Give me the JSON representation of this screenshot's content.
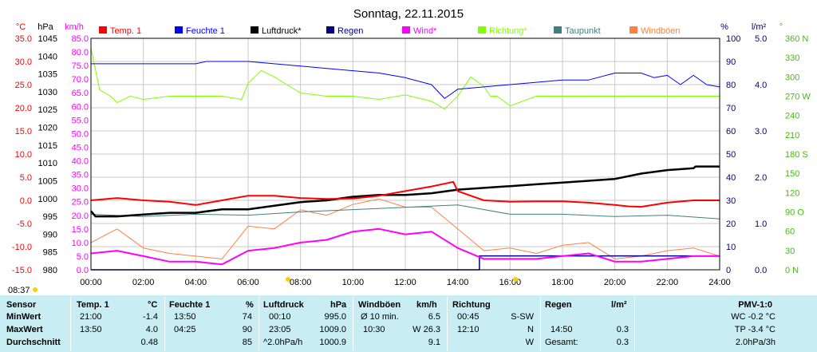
{
  "chart_data": {
    "type": "line",
    "title": "Sonntag, 22.11.2015",
    "legend": [
      {
        "name": "Temp. 1",
        "color": "#ff0000"
      },
      {
        "name": "Feuchte 1",
        "color": "#0000ff"
      },
      {
        "name": "Luftdruck*",
        "color": "#000000"
      },
      {
        "name": "Regen",
        "color": "#000080"
      },
      {
        "name": "Wind*",
        "color": "#ff00ff"
      },
      {
        "name": "Richtung*",
        "color": "#80ff00"
      },
      {
        "name": "Taupunkt",
        "color": "#408080"
      },
      {
        "name": "Windböen",
        "color": "#ff8040"
      }
    ],
    "x_ticks": [
      "00:00",
      "02:00",
      "04:00",
      "06:00",
      "08:00",
      "10:00",
      "12:00",
      "14:00",
      "16:00",
      "18:00",
      "20:00",
      "22:00",
      "24:00"
    ],
    "x_range_hours": [
      0,
      24
    ],
    "axes": {
      "temp": {
        "unit": "°C",
        "range": [
          -15,
          35
        ],
        "ticks": [
          "35.0",
          "30.0",
          "25.0",
          "20.0",
          "15.0",
          "10.0",
          "5.0",
          "0.0",
          "-5.0",
          "-10.0",
          "-15.0"
        ],
        "color": "#ff0000"
      },
      "pressure": {
        "unit": "hPa",
        "range": [
          980,
          1045
        ],
        "ticks": [
          "1045",
          "1040",
          "1035",
          "1030",
          "1025",
          "1020",
          "1015",
          "1010",
          "1005",
          "1000",
          "995",
          "990",
          "985",
          "980"
        ],
        "color": "#000000"
      },
      "wind": {
        "unit": "km/h",
        "range": [
          0,
          85
        ],
        "ticks": [
          "85.0",
          "80.0",
          "75.0",
          "70.0",
          "65.0",
          "60.0",
          "55.0",
          "50.0",
          "45.0",
          "40.0",
          "35.0",
          "30.0",
          "25.0",
          "20.0",
          "15.0",
          "10.0",
          "5.0",
          "0.0"
        ],
        "color": "#ff00ff"
      },
      "humidity": {
        "unit": "%",
        "range": [
          0,
          100
        ],
        "ticks": [
          "100",
          "90",
          "80",
          "70",
          "60",
          "50",
          "40",
          "30",
          "20",
          "10",
          "0"
        ],
        "color": "#000080"
      },
      "rain": {
        "unit": "l/m²",
        "range": [
          0,
          5
        ],
        "ticks": [
          "5.0",
          "4.0",
          "3.0",
          "2.0",
          "1.0",
          "0.0"
        ],
        "color": "#000080"
      },
      "direction": {
        "unit": "°",
        "range": [
          0,
          360
        ],
        "ticks": [
          "360 N",
          "330",
          "300",
          "270 W",
          "240",
          "210",
          "180 S",
          "150",
          "120",
          "90 O",
          "60",
          "30",
          "0 N"
        ],
        "color": "#40c000"
      }
    },
    "series": [
      {
        "name": "Temp. 1",
        "axis": "temp",
        "color": "#ff0000",
        "x": [
          0,
          1,
          2,
          3,
          4,
          5,
          6,
          7,
          8,
          9,
          10,
          11,
          12,
          13,
          13.83,
          14,
          15,
          16,
          17,
          18,
          19,
          20,
          20.5,
          21,
          22,
          23,
          24
        ],
        "y": [
          0,
          0.5,
          0,
          -0.3,
          -1,
          0,
          1,
          1,
          0.5,
          0.3,
          0.4,
          1,
          2,
          3,
          4,
          2,
          0,
          -0.3,
          -0.2,
          -0.2,
          -0.5,
          -1,
          -1.3,
          -1.4,
          -0.5,
          0,
          0
        ]
      },
      {
        "name": "Feuchte 1",
        "axis": "humidity",
        "color": "#0000ff",
        "x": [
          0,
          1,
          2,
          3,
          4,
          4.4,
          5,
          6,
          7,
          8,
          9,
          10,
          11,
          12,
          13,
          13.5,
          14,
          15,
          16,
          17,
          18,
          19,
          20,
          21,
          21.5,
          22,
          22.5,
          23,
          23.5,
          24
        ],
        "y": [
          89,
          89,
          89,
          89,
          89,
          90,
          90,
          90,
          89,
          88,
          87,
          86,
          85,
          83,
          80,
          74,
          78,
          79,
          80,
          81,
          82,
          82,
          85,
          85,
          83,
          84,
          80,
          84,
          80,
          79
        ]
      },
      {
        "name": "Luftdruck*",
        "axis": "pressure",
        "color": "#000000",
        "x": [
          0,
          0.17,
          1,
          2,
          3,
          4,
          5,
          6,
          7,
          8,
          9,
          10,
          11,
          12,
          13,
          14,
          15,
          16,
          17,
          18,
          19,
          20,
          21,
          22,
          23,
          23.08,
          24
        ],
        "y": [
          996.5,
          995,
          995,
          995.5,
          996,
          996,
          997,
          997,
          998,
          999,
          999.5,
          1000.5,
          1001,
          1001,
          1001.5,
          1002.5,
          1003,
          1003.5,
          1004,
          1004.5,
          1005,
          1005.5,
          1007,
          1008,
          1008.5,
          1009,
          1009
        ]
      },
      {
        "name": "Regen",
        "axis": "rain",
        "color": "#000080",
        "x": [
          0,
          14.83,
          14.83,
          24
        ],
        "y": [
          0,
          0,
          0.3,
          0.3
        ]
      },
      {
        "name": "Wind*",
        "axis": "wind",
        "color": "#ff00ff",
        "x": [
          0,
          1,
          2,
          3,
          4,
          5,
          6,
          7,
          8,
          9,
          10,
          11,
          12,
          13,
          14,
          15,
          16,
          17,
          18,
          19,
          20,
          21,
          22,
          23,
          24
        ],
        "y": [
          6,
          7,
          5,
          3,
          3,
          2,
          7,
          8,
          10,
          11,
          14,
          15,
          13,
          14,
          8,
          4,
          4,
          4,
          5,
          6,
          3,
          3,
          4,
          5,
          5
        ]
      },
      {
        "name": "Richtung*",
        "axis": "direction",
        "color": "#80ff00",
        "x": [
          0,
          0.33,
          0.75,
          1,
          1.5,
          2,
          3,
          4,
          5,
          5.75,
          6,
          6.5,
          7,
          8,
          9,
          10,
          11,
          12,
          13,
          13.5,
          14,
          14.5,
          15,
          15.25,
          15.5,
          16,
          17,
          18,
          19,
          20,
          21,
          22,
          23,
          24
        ],
        "y": [
          345,
          280,
          270,
          260,
          270,
          265,
          270,
          270,
          270,
          265,
          290,
          310,
          300,
          275,
          270,
          270,
          265,
          272,
          262,
          250,
          270,
          300,
          285,
          270,
          270,
          255,
          270,
          270,
          270,
          270,
          270,
          270,
          270,
          270
        ]
      },
      {
        "name": "Taupunkt",
        "axis": "temp",
        "color": "#408080",
        "x": [
          0,
          2,
          4,
          6,
          8,
          10,
          12,
          14,
          16,
          18,
          20,
          22,
          24
        ],
        "y": [
          -3,
          -3.5,
          -3,
          -3.2,
          -2.5,
          -2,
          -1.5,
          -1,
          -3,
          -3,
          -3.5,
          -3.2,
          -4
        ]
      },
      {
        "name": "Windböen",
        "axis": "wind",
        "color": "#ff8040",
        "x": [
          0,
          1,
          2,
          3,
          4,
          5,
          6,
          7,
          8,
          9,
          10,
          11,
          12,
          13,
          14,
          15,
          16,
          17,
          18,
          19,
          20,
          21,
          22,
          23,
          24
        ],
        "y": [
          10,
          15,
          8,
          6,
          5,
          4,
          16,
          15,
          22,
          20,
          24,
          26,
          23,
          23,
          15,
          7,
          8,
          6,
          9,
          10,
          4,
          5,
          7,
          8,
          5
        ]
      }
    ],
    "markers": {
      "time_label": "08:37"
    }
  },
  "table": {
    "headers": {
      "sensor": "Sensor",
      "temp": "Temp. 1",
      "temp_unit": "°C",
      "hum": "Feuchte 1",
      "hum_unit": "%",
      "press": "Luftdruck",
      "press_unit": "hPa",
      "gust": "Windböen",
      "gust_unit": "km/h",
      "dir": "Richtung",
      "rain": "Regen",
      "rain_unit": "l/m²",
      "pmv": "PMV-1:0"
    },
    "rows": [
      {
        "label": "MinWert",
        "temp_time": "21:00",
        "temp_val": "-1.4",
        "hum_time": "13:50",
        "hum_val": "74",
        "press_time": "00:10",
        "press_val": "995.0",
        "gust_time": "Ø 10 min.",
        "gust_val": "6.5",
        "dir_time": "00:45",
        "dir_val": "S-SW",
        "rain_time": "",
        "rain_val": "",
        "pmv": "WC -0.2 °C"
      },
      {
        "label": "MaxWert",
        "temp_time": "13:50",
        "temp_val": "4.0",
        "hum_time": "04:25",
        "hum_val": "90",
        "press_time": "23:05",
        "press_val": "1009.0",
        "gust_time": "10:30",
        "gust_val": "W 26.3",
        "dir_time": "12:10",
        "dir_val": "N",
        "rain_time": "14:50",
        "rain_val": "0.3",
        "pmv": "TP -3.4 °C"
      },
      {
        "label": "Durchschnitt",
        "temp_time": "",
        "temp_val": "0.48",
        "hum_time": "",
        "hum_val": "85",
        "press_time": "^2.0hPa/h",
        "press_val": "1000.9",
        "gust_time": "",
        "gust_val": "9.1",
        "dir_time": "",
        "dir_val": "W",
        "rain_time": "Gesamt:",
        "rain_val": "0.3",
        "pmv": "2.0hPa/3h"
      }
    ]
  }
}
